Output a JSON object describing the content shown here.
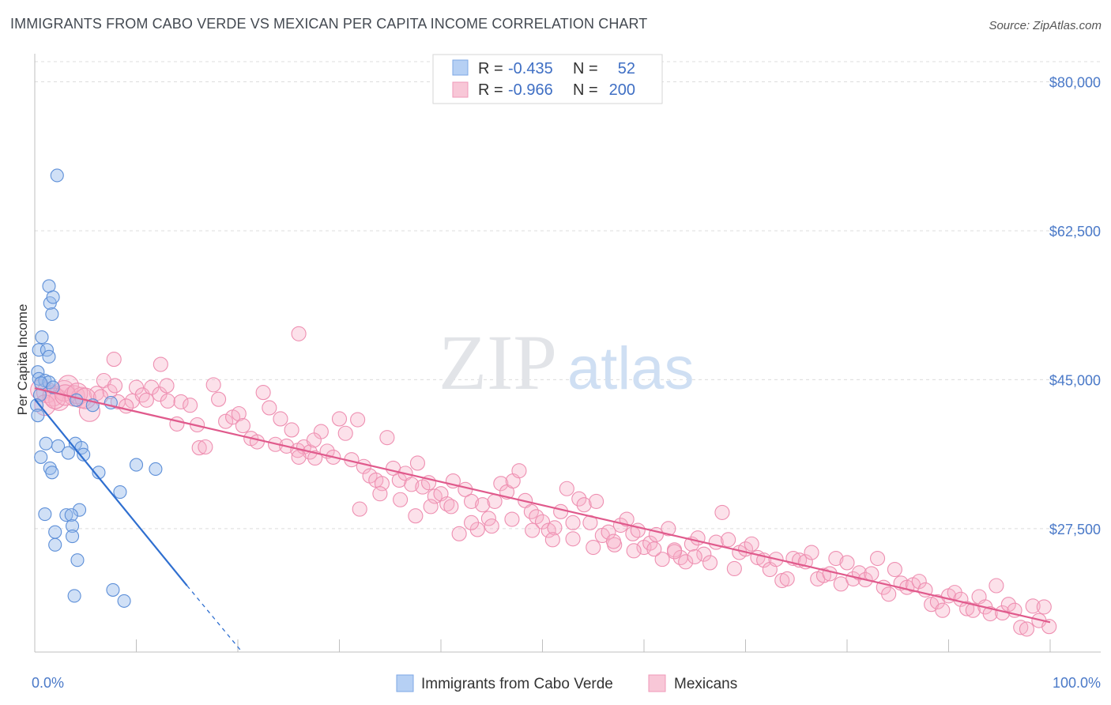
{
  "header": {
    "title": "IMMIGRANTS FROM CABO VERDE VS MEXICAN PER CAPITA INCOME CORRELATION CHART",
    "source": "Source: ZipAtlas.com"
  },
  "watermark": {
    "zip": "ZIP",
    "atlas": "atlas"
  },
  "stats_legend": [
    {
      "r_label": "R =",
      "r_value": "-0.435",
      "n_label": "N =",
      "n_value": "52",
      "color": "#a8c6f0"
    },
    {
      "r_label": "R =",
      "r_value": "-0.966",
      "n_label": "N =",
      "n_value": "200",
      "color": "#f5b3c9"
    }
  ],
  "chart_data": {
    "type": "scatter",
    "ylabel": "Per Capita Income",
    "xlim": [
      0,
      100
    ],
    "ylim": [
      13000,
      82000
    ],
    "y_ticks": [
      {
        "value": 80000,
        "label": "$80,000"
      },
      {
        "value": 62500,
        "label": "$62,500"
      },
      {
        "value": 45000,
        "label": "$45,000"
      },
      {
        "value": 27500,
        "label": "$27,500"
      }
    ],
    "x_tick_labels": [
      {
        "value": 0,
        "label": "0.0%"
      },
      {
        "value": 100,
        "label": "100.0%"
      }
    ],
    "grid": "horizontal dashed",
    "legend": "bottom-center",
    "colors": {
      "cabo_verde": "#6b9ee0",
      "mexicans": "#ec7aa3",
      "cabo_line": "#2f6fd0",
      "mex_line": "#e05a8c"
    },
    "series": [
      {
        "name": "Immigrants from Cabo Verde",
        "points": [
          [
            2.2,
            69000
          ],
          [
            1.4,
            56000
          ],
          [
            1.5,
            54000
          ],
          [
            1.7,
            52700
          ],
          [
            1.8,
            54700
          ],
          [
            0.7,
            50000
          ],
          [
            0.4,
            48500
          ],
          [
            1.2,
            48500
          ],
          [
            1.4,
            47700
          ],
          [
            0.3,
            45900
          ],
          [
            0.4,
            45100
          ],
          [
            1.0,
            44900
          ],
          [
            1.4,
            44700
          ],
          [
            1.8,
            44100
          ],
          [
            0.6,
            44600
          ],
          [
            0.5,
            43200
          ],
          [
            0.2,
            42000
          ],
          [
            0.3,
            40800
          ],
          [
            4.1,
            42600
          ],
          [
            5.7,
            42000
          ],
          [
            7.5,
            42300
          ],
          [
            1.1,
            37500
          ],
          [
            2.3,
            37200
          ],
          [
            4.0,
            37500
          ],
          [
            4.6,
            37000
          ],
          [
            4.8,
            36200
          ],
          [
            3.3,
            36400
          ],
          [
            0.6,
            35900
          ],
          [
            1.5,
            34600
          ],
          [
            1.7,
            34100
          ],
          [
            6.3,
            34100
          ],
          [
            10.0,
            35000
          ],
          [
            11.9,
            34500
          ],
          [
            8.4,
            31800
          ],
          [
            1.0,
            29200
          ],
          [
            3.1,
            29100
          ],
          [
            4.4,
            29700
          ],
          [
            3.6,
            29100
          ],
          [
            3.7,
            27800
          ],
          [
            2.0,
            27100
          ],
          [
            3.7,
            26600
          ],
          [
            2.0,
            25600
          ],
          [
            4.2,
            23800
          ],
          [
            3.9,
            19600
          ],
          [
            7.7,
            20300
          ],
          [
            8.8,
            19000
          ]
        ]
      },
      {
        "name": "Mexicans",
        "points": [
          [
            0.6,
            43800
          ],
          [
            1.2,
            43500
          ],
          [
            1.8,
            43100
          ],
          [
            2.4,
            42600
          ],
          [
            2.9,
            43700
          ],
          [
            3.3,
            44300
          ],
          [
            3.9,
            43100
          ],
          [
            4.6,
            42900
          ],
          [
            5.4,
            41300
          ],
          [
            6.1,
            43400
          ],
          [
            6.8,
            44900
          ],
          [
            7.4,
            43600
          ],
          [
            7.9,
            44300
          ],
          [
            8.2,
            42400
          ],
          [
            9.6,
            42500
          ],
          [
            10.0,
            44100
          ],
          [
            10.6,
            43200
          ],
          [
            11.5,
            44100
          ],
          [
            12.3,
            43300
          ],
          [
            13.0,
            44300
          ],
          [
            7.8,
            47400
          ],
          [
            12.4,
            46800
          ],
          [
            13.1,
            42500
          ],
          [
            14.4,
            42400
          ],
          [
            15.3,
            42000
          ],
          [
            16.0,
            39700
          ],
          [
            16.2,
            37000
          ],
          [
            16.8,
            37100
          ],
          [
            17.6,
            44400
          ],
          [
            18.1,
            42700
          ],
          [
            18.8,
            40100
          ],
          [
            19.5,
            40600
          ],
          [
            20.1,
            41000
          ],
          [
            20.5,
            39600
          ],
          [
            21.3,
            38100
          ],
          [
            21.9,
            37700
          ],
          [
            22.5,
            43500
          ],
          [
            23.1,
            41700
          ],
          [
            23.7,
            37400
          ],
          [
            24.2,
            40400
          ],
          [
            24.8,
            37200
          ],
          [
            25.3,
            39100
          ],
          [
            25.9,
            36700
          ],
          [
            26.5,
            37100
          ],
          [
            27.1,
            36500
          ],
          [
            27.6,
            35800
          ],
          [
            28.2,
            38900
          ],
          [
            28.8,
            36600
          ],
          [
            29.4,
            35900
          ],
          [
            30.0,
            40400
          ],
          [
            30.6,
            38700
          ],
          [
            31.2,
            35600
          ],
          [
            31.8,
            40300
          ],
          [
            32.4,
            34800
          ],
          [
            33.0,
            33700
          ],
          [
            33.6,
            33200
          ],
          [
            34.2,
            32800
          ],
          [
            34.7,
            38200
          ],
          [
            35.3,
            34600
          ],
          [
            35.9,
            33200
          ],
          [
            36.5,
            34000
          ],
          [
            37.1,
            32700
          ],
          [
            37.7,
            35200
          ],
          [
            38.2,
            32400
          ],
          [
            38.8,
            32900
          ],
          [
            39.4,
            31300
          ],
          [
            40.0,
            31600
          ],
          [
            40.6,
            30400
          ],
          [
            41.2,
            33100
          ],
          [
            41.8,
            26900
          ],
          [
            42.4,
            32100
          ],
          [
            43.0,
            30700
          ],
          [
            43.6,
            27400
          ],
          [
            44.1,
            30300
          ],
          [
            44.7,
            28700
          ],
          [
            45.3,
            30700
          ],
          [
            45.9,
            32800
          ],
          [
            46.5,
            31800
          ],
          [
            47.1,
            33100
          ],
          [
            47.7,
            34300
          ],
          [
            48.3,
            30800
          ],
          [
            48.9,
            29500
          ],
          [
            49.4,
            28900
          ],
          [
            50.0,
            28300
          ],
          [
            50.6,
            27300
          ],
          [
            51.2,
            27600
          ],
          [
            51.8,
            29500
          ],
          [
            52.4,
            32200
          ],
          [
            53.0,
            28200
          ],
          [
            53.6,
            31000
          ],
          [
            54.1,
            30300
          ],
          [
            54.7,
            28200
          ],
          [
            55.3,
            30700
          ],
          [
            55.9,
            26700
          ],
          [
            56.5,
            27100
          ],
          [
            57.1,
            25600
          ],
          [
            57.7,
            27900
          ],
          [
            58.3,
            28600
          ],
          [
            58.9,
            26900
          ],
          [
            59.4,
            27300
          ],
          [
            60.0,
            25300
          ],
          [
            60.6,
            25800
          ],
          [
            61.2,
            26800
          ],
          [
            61.8,
            23900
          ],
          [
            62.4,
            27500
          ],
          [
            63.0,
            25000
          ],
          [
            63.6,
            24100
          ],
          [
            64.1,
            23600
          ],
          [
            64.7,
            25700
          ],
          [
            65.3,
            26400
          ],
          [
            65.9,
            24500
          ],
          [
            66.5,
            23500
          ],
          [
            67.1,
            25900
          ],
          [
            67.7,
            29400
          ],
          [
            68.3,
            26200
          ],
          [
            68.9,
            22800
          ],
          [
            69.4,
            24700
          ],
          [
            70.0,
            25100
          ],
          [
            70.6,
            25700
          ],
          [
            71.2,
            24100
          ],
          [
            71.8,
            23800
          ],
          [
            72.4,
            22700
          ],
          [
            73.0,
            23900
          ],
          [
            73.6,
            21400
          ],
          [
            74.1,
            21600
          ],
          [
            74.7,
            24000
          ],
          [
            75.3,
            23800
          ],
          [
            75.9,
            23600
          ],
          [
            76.5,
            24700
          ],
          [
            77.1,
            21600
          ],
          [
            77.7,
            22000
          ],
          [
            78.3,
            22200
          ],
          [
            78.9,
            24000
          ],
          [
            79.4,
            21000
          ],
          [
            80.0,
            23500
          ],
          [
            80.6,
            21600
          ],
          [
            81.2,
            22300
          ],
          [
            81.8,
            21500
          ],
          [
            82.4,
            22200
          ],
          [
            83.0,
            24000
          ],
          [
            83.6,
            20600
          ],
          [
            84.1,
            19800
          ],
          [
            84.7,
            22700
          ],
          [
            85.3,
            21100
          ],
          [
            85.9,
            20600
          ],
          [
            86.5,
            20900
          ],
          [
            87.1,
            21300
          ],
          [
            87.7,
            20300
          ],
          [
            88.3,
            18600
          ],
          [
            88.9,
            18900
          ],
          [
            89.4,
            17900
          ],
          [
            90.0,
            19600
          ],
          [
            90.6,
            20000
          ],
          [
            91.2,
            19200
          ],
          [
            91.8,
            18100
          ],
          [
            92.4,
            17900
          ],
          [
            93.0,
            19500
          ],
          [
            93.6,
            18300
          ],
          [
            94.1,
            17500
          ],
          [
            94.7,
            20800
          ],
          [
            95.3,
            17600
          ],
          [
            95.9,
            18600
          ],
          [
            96.5,
            17900
          ],
          [
            97.1,
            15900
          ],
          [
            97.7,
            15700
          ],
          [
            98.3,
            18400
          ],
          [
            98.9,
            16700
          ],
          [
            99.4,
            18300
          ],
          [
            99.9,
            16000
          ],
          [
            1.0,
            42000
          ],
          [
            2.0,
            42800
          ],
          [
            3.0,
            43200
          ],
          [
            4.2,
            43400
          ],
          [
            5.0,
            42800
          ],
          [
            6.5,
            43000
          ],
          [
            9.0,
            41900
          ],
          [
            11.0,
            42600
          ],
          [
            14.0,
            39800
          ],
          [
            26.0,
            35900
          ],
          [
            27.5,
            37900
          ],
          [
            32.0,
            29800
          ],
          [
            34.0,
            31600
          ],
          [
            36.0,
            30900
          ],
          [
            37.5,
            29000
          ],
          [
            39.0,
            30100
          ],
          [
            41.0,
            30100
          ],
          [
            43.0,
            28200
          ],
          [
            45.0,
            27800
          ],
          [
            47.0,
            28600
          ],
          [
            49.0,
            27300
          ],
          [
            51.0,
            26200
          ],
          [
            53.0,
            26300
          ],
          [
            55.0,
            25300
          ],
          [
            57.0,
            26000
          ],
          [
            59.0,
            24900
          ],
          [
            61.0,
            25100
          ],
          [
            63.0,
            24800
          ],
          [
            65.0,
            24200
          ],
          [
            26.0,
            50400
          ]
        ]
      }
    ],
    "trend_lines": [
      {
        "series": "Immigrants from Cabo Verde",
        "from": [
          0,
          42700
        ],
        "to": [
          15,
          20800
        ],
        "dashed_to": [
          22.5,
          10000
        ]
      },
      {
        "series": "Mexicans",
        "from": [
          0,
          44000
        ],
        "to": [
          100,
          16500
        ]
      }
    ]
  }
}
